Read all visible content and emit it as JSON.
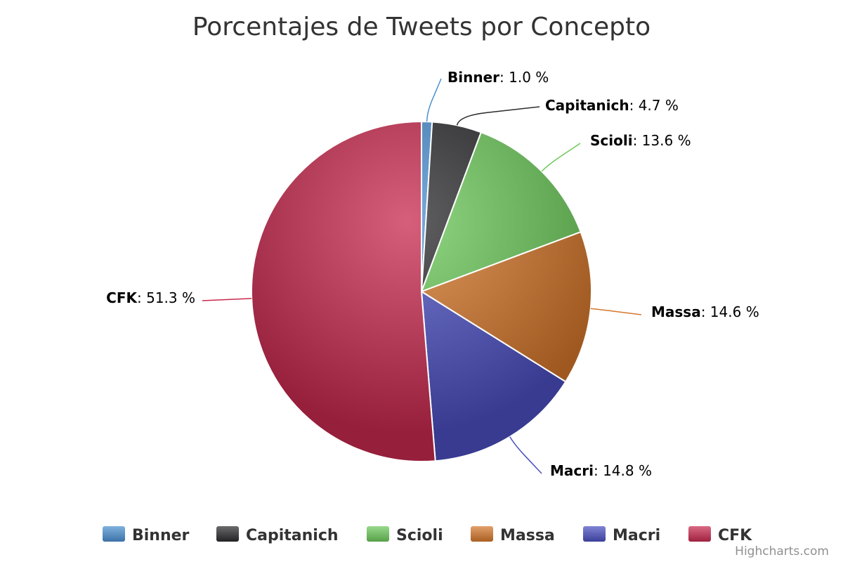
{
  "chart_data": {
    "type": "pie",
    "title": "Porcentajes de Tweets por Concepto",
    "value_suffix": " %",
    "slices": [
      {
        "name": "Binner",
        "value": 1.0,
        "label": "1.0 %",
        "color": "#4a8fd0"
      },
      {
        "name": "Capitanich",
        "value": 4.7,
        "label": "4.7 %",
        "color": "#2b2b2e"
      },
      {
        "name": "Scioli",
        "value": 13.6,
        "label": "13.6 %",
        "color": "#6cc95a"
      },
      {
        "name": "Massa",
        "value": 14.6,
        "label": "14.6 %",
        "color": "#d4772a"
      },
      {
        "name": "Macri",
        "value": 14.8,
        "label": "14.8 %",
        "color": "#4a4fc0"
      },
      {
        "name": "CFK",
        "value": 51.3,
        "label": "51.3 %",
        "color": "#c8294f"
      }
    ],
    "legend": "bottom-center"
  },
  "credits": "Highcharts.com"
}
